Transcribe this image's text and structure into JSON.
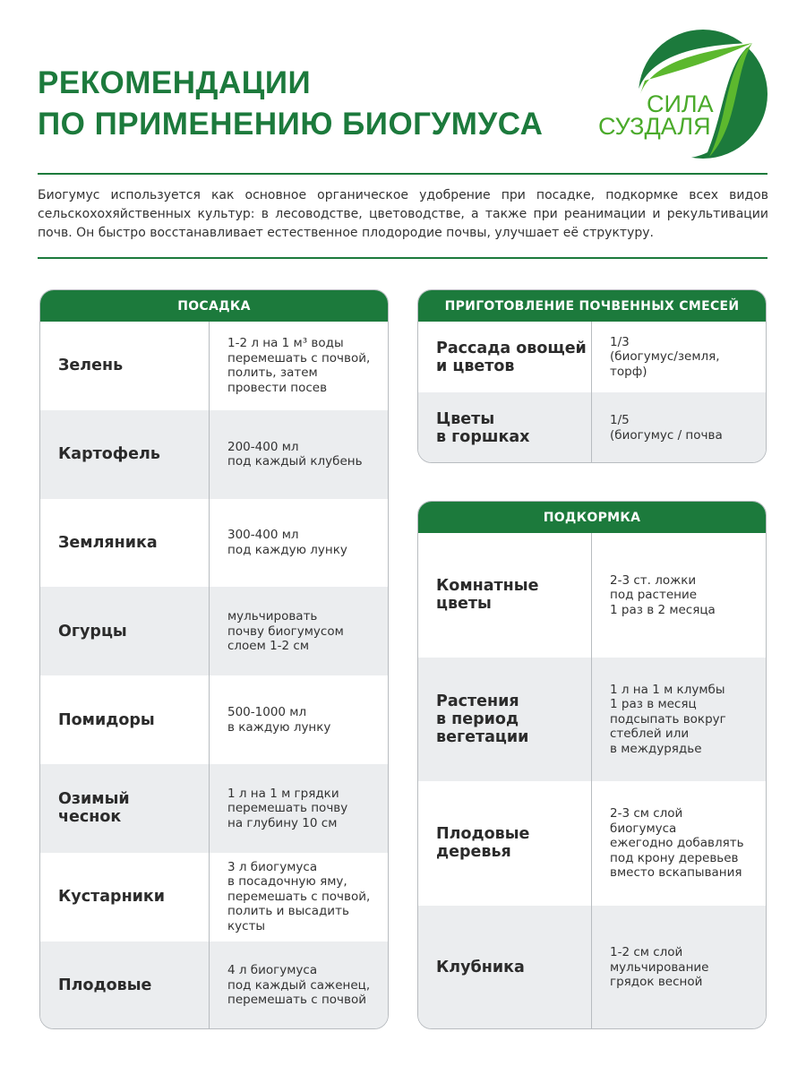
{
  "title": {
    "line1": "РЕКОМЕНДАЦИИ",
    "line2": "ПО ПРИМЕНЕНИЮ БИОГУМУСА"
  },
  "logo": {
    "line1": "СИЛА",
    "line2": "СУЗДАЛЯ",
    "colors": {
      "dark": "#1c7a3c",
      "light": "#5cb82e"
    }
  },
  "intro": "Биогумус используется как основное органическое удобрение при посадке, подкормке всех видов сельскохохяйственных культур: в лесоводстве, цветоводстве, а также при реанимации и рекультивации почв. Он быстро восстанавливает естественное плодородие почвы, улучшает её структуру.",
  "planting": {
    "title": "ПОСАДКА",
    "rows": [
      {
        "k": "Зелень",
        "v": "1-2 л на 1 м³ воды\nперемешать с почвой,\nполить, затем\nпровести посев"
      },
      {
        "k": "Картофель",
        "v": "200-400 мл\nпод каждый клубень"
      },
      {
        "k": "Земляника",
        "v": "300-400 мл\nпод каждую лунку"
      },
      {
        "k": "Огурцы",
        "v": "мульчировать\nпочву биогумусом\nслоем 1-2 см"
      },
      {
        "k": "Помидоры",
        "v": "500-1000 мл\nв каждую лунку"
      },
      {
        "k": "Озимый\nчеснок",
        "v": "1 л на 1 м грядки\nперемешать почву\nна глубину 10 см"
      },
      {
        "k": "Кустарники",
        "v": "3 л биогумуса\nв посадочную яму,\nперемешать с почвой,\nполить и высадить\nкусты"
      },
      {
        "k": "Плодовые",
        "v": "4 л биогумуса\nпод каждый саженец,\nперемешать с почвой"
      }
    ]
  },
  "mixes": {
    "title": "ПРИГОТОВЛЕНИЕ ПОЧВЕННЫХ СМЕСЕЙ",
    "rows": [
      {
        "k": "Рассада овощей\nи цветов",
        "v": "1/3\n(биогумус/земля,\nторф)"
      },
      {
        "k": "Цветы\nв горшках",
        "v": "1/5\n(биогумус / почва"
      }
    ]
  },
  "feeding": {
    "title": "ПОДКОРМКА",
    "rows": [
      {
        "k": "Комнатные\nцветы",
        "v": "2-3 ст. ложки\nпод растение\n1 раз в 2 месяца"
      },
      {
        "k": "Растения\nв период\nвегетации",
        "v": "1 л на 1 м клумбы\n1 раз в месяц\nподсыпать вокруг\nстеблей или\nв междурядье"
      },
      {
        "k": "Плодовые\nдеревья",
        "v": "2-3 см слой\nбиогумуса\nежегодно добавлять\nпод крону деревьев\nвместо вскапывания"
      },
      {
        "k": "Клубника",
        "v": "1-2 см слой\nмульчирование\nгрядок весной"
      }
    ]
  }
}
